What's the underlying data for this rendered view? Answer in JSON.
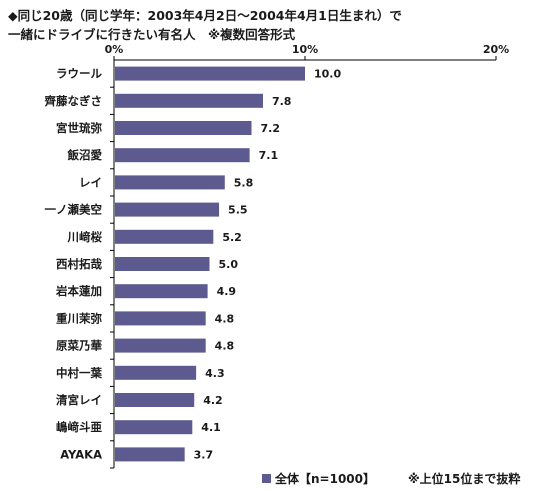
{
  "title_line1": "◆同じ20歳（同じ学年：2003年4月2日～2004年4月1日生まれ）で",
  "title_line2": "一緒にドライブに行きたい有名人　※複数回答形式",
  "legend_label": "全体【n=1000】",
  "note": "※上位15位まで抜粋",
  "colors": {
    "bar": "#5c5a8e",
    "axis": "#000000"
  },
  "chart_data": {
    "type": "bar",
    "orientation": "horizontal",
    "categories": [
      "ラウール",
      "齊藤なぎさ",
      "宮世琉弥",
      "飯沼愛",
      "レイ",
      "一ノ瀬美空",
      "川﨑桜",
      "西村拓哉",
      "岩本蓮加",
      "重川茉弥",
      "原菜乃華",
      "中村一葉",
      "清宮レイ",
      "嶋﨑斗亜",
      "AYAKA"
    ],
    "values": [
      10.0,
      7.8,
      7.2,
      7.1,
      5.8,
      5.5,
      5.2,
      5.0,
      4.9,
      4.8,
      4.8,
      4.3,
      4.2,
      4.1,
      3.7
    ],
    "value_labels": [
      "10.0",
      "7.8",
      "7.2",
      "7.1",
      "5.8",
      "5.5",
      "5.2",
      "5.0",
      "4.9",
      "4.8",
      "4.8",
      "4.3",
      "4.2",
      "4.1",
      "3.7"
    ],
    "x_ticks": [
      0,
      10,
      20
    ],
    "x_tick_labels": [
      "0%",
      "10%",
      "20%"
    ],
    "xlim": [
      0,
      20
    ],
    "series": [
      {
        "name": "全体【n=1000】",
        "values": [
          10.0,
          7.8,
          7.2,
          7.1,
          5.8,
          5.5,
          5.2,
          5.0,
          4.9,
          4.8,
          4.8,
          4.3,
          4.2,
          4.1,
          3.7
        ]
      }
    ],
    "grid": false,
    "legend_position": "bottom"
  }
}
